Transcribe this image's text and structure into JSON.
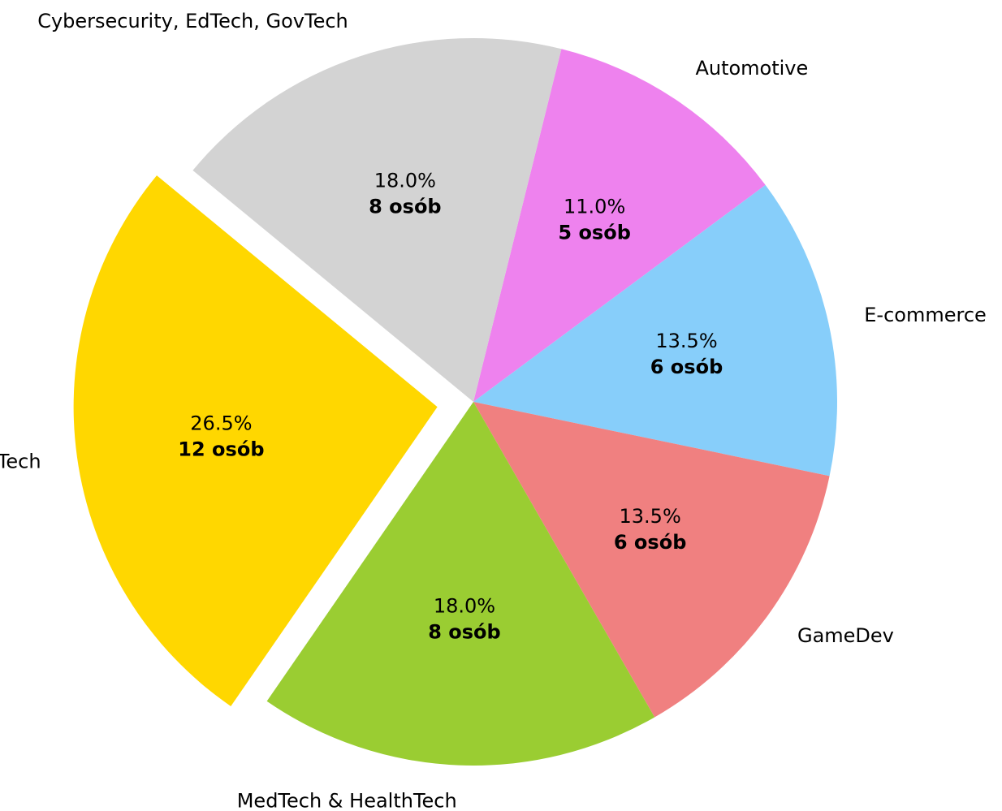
{
  "chart_data": {
    "type": "pie",
    "categories": [
      "Automotive",
      "E-commerce",
      "GameDev",
      "MedTech & HealthTech",
      "Tech",
      "Cybersecurity, EdTech, GovTech"
    ],
    "values": [
      11.0,
      13.5,
      13.5,
      18.0,
      26.5,
      18.0
    ],
    "value_labels": [
      "11.0%",
      "13.5%",
      "13.5%",
      "18.0%",
      "26.5%",
      "18.0%"
    ],
    "counts": [
      5,
      6,
      6,
      8,
      12,
      8
    ],
    "count_labels": [
      "5 osób",
      "6 osób",
      "6 osób",
      "8 osób",
      "12 osób",
      "8 osób"
    ],
    "colors": [
      "#ee82ee",
      "#87cefa",
      "#f08080",
      "#9acd32",
      "#ffd700",
      "#d3d3d3"
    ],
    "explode": [
      0,
      0,
      0,
      0,
      0.1,
      0
    ]
  }
}
